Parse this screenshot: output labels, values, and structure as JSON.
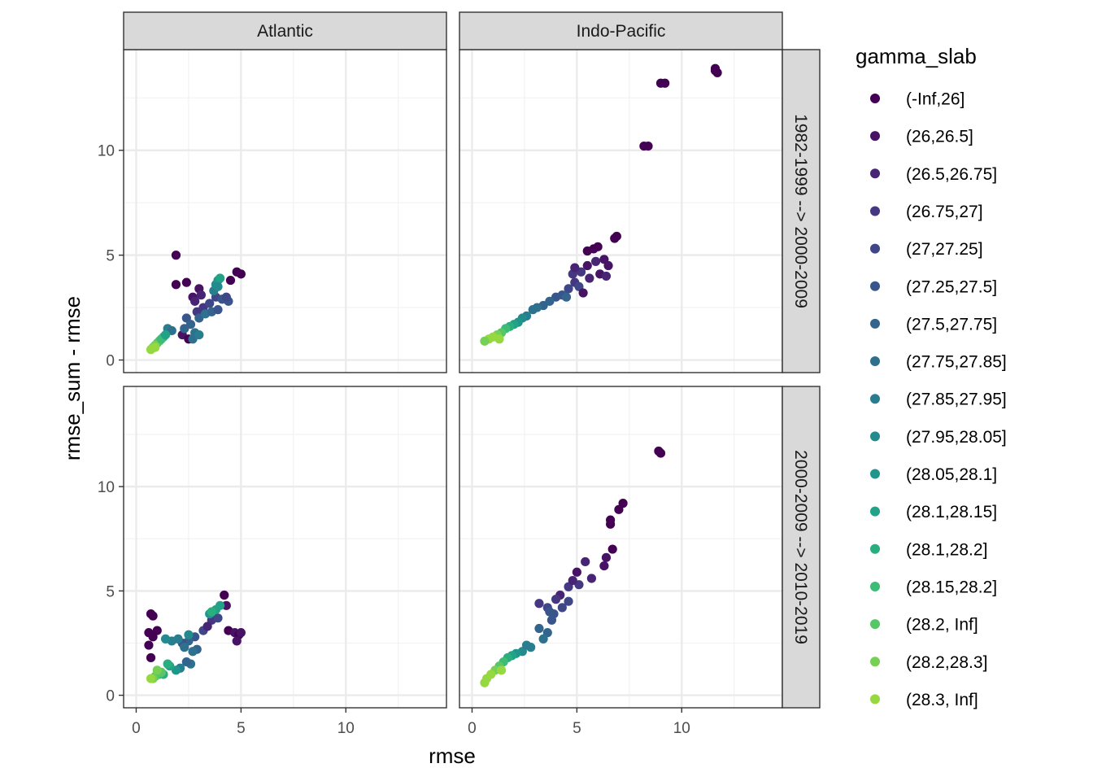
{
  "chart_data": {
    "type": "scatter",
    "xlabel": "rmse",
    "ylabel": "rmse_sum - rmse",
    "xlim": [
      -0.6,
      14.8
    ],
    "ylim": [
      -0.6,
      14.8
    ],
    "x_ticks": [
      0,
      5,
      10
    ],
    "y_ticks": [
      0,
      5,
      10
    ],
    "grid": true,
    "legend_position": "right",
    "legend": {
      "title": "gamma_slab",
      "entries": [
        {
          "label": "(-Inf,26]",
          "color": "#440154"
        },
        {
          "label": "(26,26.5]",
          "color": "#471365"
        },
        {
          "label": "(26.5,26.75]",
          "color": "#482475"
        },
        {
          "label": "(26.75,27]",
          "color": "#453781"
        },
        {
          "label": "(27,27.25]",
          "color": "#3F4788"
        },
        {
          "label": "(27.25,27.5]",
          "color": "#39568C"
        },
        {
          "label": "(27.5,27.75]",
          "color": "#32648E"
        },
        {
          "label": "(27.75,27.85]",
          "color": "#2D718E"
        },
        {
          "label": "(27.85,27.95]",
          "color": "#287D8E"
        },
        {
          "label": "(27.95,28.05]",
          "color": "#238A8D"
        },
        {
          "label": "(28.05,28.1]",
          "color": "#1F968B"
        },
        {
          "label": "(28.1,28.15]",
          "color": "#20A386"
        },
        {
          "label": "(28.1,28.2]",
          "color": "#29AF7F"
        },
        {
          "label": "(28.15,28.2]",
          "color": "#3CBC75"
        },
        {
          "label": "(28.2, Inf]",
          "color": "#56C667"
        },
        {
          "label": "(28.2,28.3]",
          "color": "#75D054"
        },
        {
          "label": "(28.3, Inf]",
          "color": "#95D840"
        }
      ]
    },
    "columns": [
      "Atlantic",
      "Indo-Pacific"
    ],
    "rows": [
      "1982-1999 --> 2000-2009",
      "2000-2009 --> 2010-2019"
    ],
    "panels": [
      {
        "col": "Atlantic",
        "row": "1982-1999 --> 2000-2009",
        "points": [
          [
            1.9,
            5.0,
            0
          ],
          [
            1.9,
            3.6,
            0
          ],
          [
            2.4,
            3.7,
            0
          ],
          [
            4.8,
            4.2,
            0
          ],
          [
            5.0,
            4.1,
            0
          ],
          [
            4.5,
            3.8,
            0
          ],
          [
            2.7,
            3.0,
            1
          ],
          [
            3.0,
            3.4,
            1
          ],
          [
            3.1,
            3.1,
            2
          ],
          [
            2.8,
            2.8,
            2
          ],
          [
            2.2,
            1.2,
            1
          ],
          [
            2.5,
            1.0,
            0
          ],
          [
            2.9,
            2.3,
            3
          ],
          [
            3.2,
            2.5,
            3
          ],
          [
            3.5,
            2.7,
            4
          ],
          [
            3.8,
            3.0,
            4
          ],
          [
            4.1,
            2.9,
            5
          ],
          [
            4.4,
            2.8,
            5
          ],
          [
            2.4,
            2.0,
            5
          ],
          [
            2.6,
            1.7,
            6
          ],
          [
            2.3,
            1.5,
            6
          ],
          [
            2.8,
            1.3,
            7
          ],
          [
            2.7,
            1.0,
            7
          ],
          [
            3.0,
            1.2,
            8
          ],
          [
            3.0,
            2.0,
            6
          ],
          [
            3.3,
            2.2,
            7
          ],
          [
            3.6,
            2.3,
            6
          ],
          [
            3.9,
            2.4,
            5
          ],
          [
            4.3,
            3.0,
            4
          ],
          [
            3.7,
            3.3,
            8
          ],
          [
            3.8,
            3.6,
            9
          ],
          [
            3.9,
            3.8,
            10
          ],
          [
            4.0,
            3.9,
            11
          ],
          [
            3.9,
            3.5,
            9
          ],
          [
            1.5,
            1.5,
            8
          ],
          [
            1.7,
            1.4,
            7
          ],
          [
            1.3,
            1.1,
            12
          ],
          [
            1.1,
            0.9,
            13
          ],
          [
            1.0,
            0.8,
            14
          ],
          [
            0.9,
            0.7,
            15
          ],
          [
            0.8,
            0.6,
            15
          ],
          [
            0.7,
            0.5,
            16
          ],
          [
            1.2,
            1.0,
            13
          ],
          [
            0.9,
            0.6,
            16
          ],
          [
            1.4,
            1.2,
            11
          ]
        ]
      },
      {
        "col": "Indo-Pacific",
        "row": "1982-1999 --> 2000-2009",
        "points": [
          [
            11.6,
            13.9,
            0
          ],
          [
            11.7,
            13.7,
            0
          ],
          [
            11.6,
            13.8,
            0
          ],
          [
            9.0,
            13.2,
            0
          ],
          [
            9.2,
            13.2,
            0
          ],
          [
            8.2,
            10.2,
            0
          ],
          [
            8.4,
            10.2,
            0
          ],
          [
            6.8,
            5.8,
            0
          ],
          [
            6.9,
            5.9,
            0
          ],
          [
            5.8,
            5.3,
            0
          ],
          [
            6.0,
            5.4,
            0
          ],
          [
            5.5,
            5.2,
            0
          ],
          [
            6.3,
            4.8,
            1
          ],
          [
            6.5,
            4.5,
            1
          ],
          [
            5.5,
            4.5,
            1
          ],
          [
            5.9,
            4.7,
            2
          ],
          [
            6.1,
            4.1,
            1
          ],
          [
            6.4,
            4.0,
            2
          ],
          [
            5.2,
            4.2,
            3
          ],
          [
            5.6,
            3.9,
            2
          ],
          [
            4.9,
            3.7,
            3
          ],
          [
            4.8,
            4.1,
            3
          ],
          [
            5.1,
            3.5,
            4
          ],
          [
            5.3,
            3.2,
            1
          ],
          [
            4.6,
            3.4,
            4
          ],
          [
            4.3,
            3.1,
            5
          ],
          [
            4.0,
            3.0,
            5
          ],
          [
            3.7,
            2.8,
            6
          ],
          [
            4.5,
            3.0,
            6
          ],
          [
            3.4,
            2.6,
            6
          ],
          [
            3.1,
            2.5,
            7
          ],
          [
            2.9,
            2.4,
            7
          ],
          [
            2.6,
            2.1,
            8
          ],
          [
            2.4,
            2.0,
            9
          ],
          [
            2.2,
            1.8,
            10
          ],
          [
            2.0,
            1.7,
            11
          ],
          [
            1.8,
            1.6,
            12
          ],
          [
            1.6,
            1.5,
            13
          ],
          [
            1.4,
            1.3,
            14
          ],
          [
            1.2,
            1.2,
            15
          ],
          [
            1.0,
            1.1,
            16
          ],
          [
            0.8,
            1.0,
            16
          ],
          [
            1.3,
            1.0,
            16
          ],
          [
            0.6,
            0.9,
            15
          ],
          [
            4.9,
            4.4,
            2
          ]
        ]
      },
      {
        "col": "Atlantic",
        "row": "2000-2009 --> 2010-2019",
        "points": [
          [
            0.7,
            3.9,
            0
          ],
          [
            0.8,
            3.8,
            0
          ],
          [
            0.6,
            3.0,
            0
          ],
          [
            0.8,
            2.8,
            0
          ],
          [
            0.6,
            2.4,
            0
          ],
          [
            0.7,
            1.8,
            0
          ],
          [
            1.0,
            3.1,
            0
          ],
          [
            4.2,
            4.8,
            0
          ],
          [
            4.3,
            4.3,
            1
          ],
          [
            4.4,
            3.1,
            0
          ],
          [
            4.7,
            3.0,
            1
          ],
          [
            4.9,
            2.9,
            0
          ],
          [
            5.0,
            3.0,
            1
          ],
          [
            4.8,
            2.6,
            1
          ],
          [
            3.6,
            3.6,
            3
          ],
          [
            3.2,
            3.1,
            4
          ],
          [
            2.8,
            2.8,
            5
          ],
          [
            2.5,
            2.6,
            6
          ],
          [
            2.2,
            2.5,
            5
          ],
          [
            3.9,
            3.7,
            4
          ],
          [
            3.4,
            3.3,
            2
          ],
          [
            2.9,
            2.2,
            6
          ],
          [
            2.7,
            2.1,
            7
          ],
          [
            2.3,
            2.3,
            7
          ],
          [
            2.0,
            2.7,
            8
          ],
          [
            1.7,
            2.6,
            8
          ],
          [
            1.4,
            2.7,
            9
          ],
          [
            2.5,
            2.9,
            9
          ],
          [
            2.6,
            1.5,
            7
          ],
          [
            2.4,
            1.6,
            6
          ],
          [
            2.1,
            1.3,
            8
          ],
          [
            1.9,
            1.2,
            10
          ],
          [
            1.6,
            1.4,
            11
          ],
          [
            1.3,
            1.0,
            12
          ],
          [
            3.5,
            3.9,
            10
          ],
          [
            3.8,
            4.1,
            11
          ],
          [
            4.0,
            4.3,
            11
          ],
          [
            3.6,
            4.0,
            12
          ],
          [
            1.1,
            1.0,
            13
          ],
          [
            0.9,
            0.9,
            14
          ],
          [
            0.8,
            0.8,
            15
          ],
          [
            0.7,
            0.8,
            16
          ],
          [
            1.2,
            1.1,
            14
          ],
          [
            1.0,
            1.2,
            15
          ],
          [
            1.5,
            1.5,
            12
          ]
        ]
      },
      {
        "col": "Indo-Pacific",
        "row": "2000-2009 --> 2010-2019",
        "points": [
          [
            8.9,
            11.7,
            0
          ],
          [
            9.0,
            11.6,
            0
          ],
          [
            7.2,
            9.2,
            0
          ],
          [
            7.0,
            8.9,
            0
          ],
          [
            6.6,
            8.4,
            0
          ],
          [
            6.6,
            8.2,
            0
          ],
          [
            6.7,
            7.0,
            0
          ],
          [
            6.4,
            6.6,
            1
          ],
          [
            6.3,
            6.2,
            1
          ],
          [
            5.4,
            6.4,
            2
          ],
          [
            5.0,
            5.9,
            1
          ],
          [
            5.7,
            5.6,
            2
          ],
          [
            5.1,
            5.3,
            3
          ],
          [
            4.6,
            5.2,
            3
          ],
          [
            4.2,
            4.8,
            2
          ],
          [
            4.0,
            4.6,
            3
          ],
          [
            4.6,
            4.5,
            4
          ],
          [
            3.2,
            4.4,
            3
          ],
          [
            3.6,
            4.2,
            4
          ],
          [
            3.9,
            3.9,
            5
          ],
          [
            3.7,
            4.0,
            5
          ],
          [
            3.2,
            3.2,
            6
          ],
          [
            3.6,
            3.0,
            6
          ],
          [
            3.4,
            2.7,
            7
          ],
          [
            3.8,
            3.6,
            5
          ],
          [
            4.3,
            4.2,
            4
          ],
          [
            2.8,
            2.3,
            8
          ],
          [
            2.4,
            2.1,
            9
          ],
          [
            2.1,
            2.0,
            10
          ],
          [
            1.9,
            1.9,
            11
          ],
          [
            1.7,
            1.8,
            12
          ],
          [
            1.5,
            1.6,
            13
          ],
          [
            1.3,
            1.4,
            14
          ],
          [
            1.1,
            1.2,
            15
          ],
          [
            0.9,
            1.0,
            16
          ],
          [
            0.7,
            0.8,
            16
          ],
          [
            0.6,
            0.6,
            16
          ],
          [
            1.4,
            1.2,
            16
          ],
          [
            2.6,
            2.4,
            8
          ],
          [
            4.8,
            5.5,
            2
          ]
        ]
      }
    ]
  }
}
